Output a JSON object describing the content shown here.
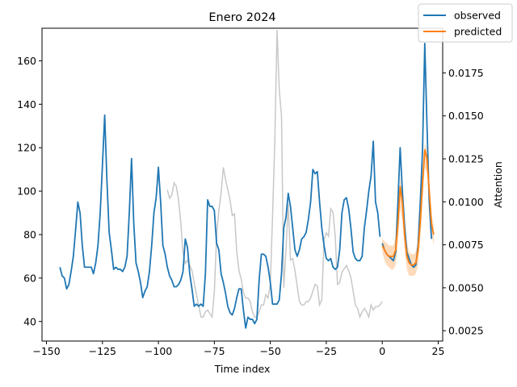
{
  "chart_data": {
    "type": "line",
    "title": "Enero 2024",
    "xlabel": "Time index",
    "ylabel": "",
    "ylabel_right": "Attention",
    "xlim": [
      -152,
      27
    ],
    "ylim": [
      31,
      175
    ],
    "ylim_right": [
      0.0019,
      0.0201
    ],
    "x_ticks": [
      -150,
      -125,
      -100,
      -75,
      -50,
      -25,
      0,
      25
    ],
    "x_tick_labels": [
      "−150",
      "−125",
      "−100",
      "−75",
      "−50",
      "−25",
      "0",
      "25"
    ],
    "y_ticks": [
      40,
      60,
      80,
      100,
      120,
      140,
      160
    ],
    "y_tick_labels": [
      "40",
      "60",
      "80",
      "100",
      "120",
      "140",
      "160"
    ],
    "y_ticks_right": [
      0.0025,
      0.005,
      0.0075,
      0.01,
      0.0125,
      0.015,
      0.0175
    ],
    "y_tick_labels_right": [
      "0.0025",
      "0.0050",
      "0.0075",
      "0.0100",
      "0.0125",
      "0.0150",
      "0.0175"
    ],
    "grid": false,
    "legend_position": "top-right",
    "series": [
      {
        "name": "observed",
        "color": "#1f77b4",
        "x": [
          -144,
          -143,
          -142,
          -141,
          -140,
          -139,
          -138,
          -137,
          -136,
          -135,
          -134,
          -133,
          -132,
          -131,
          -130,
          -129,
          -128,
          -127,
          -126,
          -125,
          -124,
          -123,
          -122,
          -121,
          -120,
          -119,
          -118,
          -117,
          -116,
          -115,
          -114,
          -113,
          -112,
          -111,
          -110,
          -109,
          -108,
          -107,
          -106,
          -105,
          -104,
          -103,
          -102,
          -101,
          -100,
          -99,
          -98,
          -97,
          -96,
          -95,
          -94,
          -93,
          -92,
          -91,
          -90,
          -89,
          -88,
          -87,
          -86,
          -85,
          -84,
          -83,
          -82,
          -81,
          -80,
          -79,
          -78,
          -77,
          -76,
          -75,
          -74,
          -73,
          -72,
          -71,
          -70,
          -69,
          -68,
          -67,
          -66,
          -65,
          -64,
          -63,
          -62,
          -61,
          -60,
          -59,
          -58,
          -57,
          -56,
          -55,
          -54,
          -53,
          -52,
          -51,
          -50,
          -49,
          -48,
          -47,
          -46,
          -45,
          -44,
          -43,
          -42,
          -41,
          -40,
          -39,
          -38,
          -37,
          -36,
          -35,
          -34,
          -33,
          -32,
          -31,
          -30,
          -29,
          -28,
          -27,
          -26,
          -25,
          -24,
          -23,
          -22,
          -21,
          -20,
          -19,
          -18,
          -17,
          -16,
          -15,
          -14,
          -13,
          -12,
          -11,
          -10,
          -9,
          -8,
          -7,
          -6,
          -5,
          -4,
          -3,
          -2,
          -1,
          0,
          1,
          2,
          3,
          4,
          5,
          6,
          7,
          8,
          9,
          10,
          11,
          12,
          13,
          14,
          15,
          16,
          17,
          18,
          19,
          20,
          21,
          22,
          23
        ],
        "values": [
          65,
          61,
          60,
          55,
          57,
          63,
          70,
          82,
          95,
          90,
          75,
          65,
          65,
          65,
          65,
          62,
          67,
          75,
          90,
          112,
          135,
          105,
          81,
          73,
          64,
          65,
          64,
          64,
          63,
          65,
          70,
          90,
          115,
          85,
          67,
          63,
          58,
          51,
          54,
          56,
          63,
          75,
          90,
          97,
          111,
          95,
          75,
          71,
          65,
          61,
          59,
          56,
          56,
          57,
          59,
          63,
          78,
          74,
          62,
          55,
          47,
          48,
          47,
          48,
          47,
          62,
          96,
          93,
          93,
          91,
          76,
          73,
          62,
          58,
          53,
          47,
          44,
          43,
          46,
          51,
          55,
          55,
          45,
          37,
          42,
          41,
          41,
          39,
          41,
          59,
          71,
          71,
          70,
          65,
          58,
          48,
          48,
          48,
          50,
          62,
          83,
          88,
          99,
          93,
          83,
          73,
          70,
          73,
          78,
          79,
          81,
          87,
          95,
          110,
          108,
          109,
          95,
          83,
          75,
          69,
          68,
          69,
          65,
          64,
          65,
          73,
          90,
          96,
          97,
          92,
          83,
          72,
          69,
          68,
          68,
          70,
          83,
          91,
          100,
          107,
          123,
          95,
          90,
          79,
          null,
          null,
          null,
          null,
          null,
          null,
          null,
          null,
          null,
          null,
          null,
          null,
          null,
          null,
          null,
          null,
          null,
          null,
          null,
          null,
          null,
          null,
          null,
          null
        ],
        "values_future": [
          null,
          null,
          null,
          null,
          null,
          null,
          null,
          null,
          null,
          null,
          null,
          null,
          null,
          null,
          null,
          null,
          null,
          null,
          null,
          null,
          null,
          null,
          null,
          null,
          null,
          null,
          null,
          null,
          null,
          null,
          null,
          null,
          null,
          null,
          null,
          null,
          null,
          null,
          null,
          null,
          null,
          null,
          null,
          null,
          null,
          null,
          null,
          null,
          null,
          null,
          null,
          null,
          null,
          null,
          null,
          null,
          null,
          null,
          null,
          null,
          null,
          null,
          null,
          null,
          null,
          null,
          null,
          null,
          null,
          null,
          null,
          null,
          null,
          null,
          null,
          null,
          null,
          null,
          null,
          null,
          null,
          null,
          null,
          null,
          null,
          null,
          null,
          null,
          null,
          null,
          null,
          null,
          null,
          null,
          null,
          null,
          null,
          null,
          null,
          null,
          null,
          null,
          null,
          null,
          null,
          null,
          null,
          null,
          null,
          null,
          null,
          null,
          null,
          null,
          null,
          null,
          null,
          null,
          null,
          null,
          null,
          null,
          null,
          null,
          null,
          null,
          null,
          null,
          null,
          null,
          null,
          null,
          null,
          null,
          null,
          null,
          null,
          null,
          null,
          null,
          null,
          null,
          null,
          null,
          76,
          73,
          71,
          70,
          69,
          68,
          72,
          95,
          120,
          100,
          84,
          72,
          69,
          66,
          65,
          66,
          75,
          95,
          119,
          168,
          130,
          95,
          78,
          null
        ]
      },
      {
        "name": "predicted",
        "color": "#ff7f0e",
        "x": [
          0,
          1,
          2,
          3,
          4,
          5,
          6,
          7,
          8,
          9,
          10,
          11,
          12,
          13,
          14,
          15,
          16,
          17,
          18,
          19,
          20,
          21,
          22,
          23
        ],
        "values": [
          75,
          73,
          71,
          70,
          70,
          70,
          73,
          85,
          102,
          95,
          80,
          70,
          67,
          66,
          66,
          67,
          73,
          86,
          104,
          119,
          115,
          100,
          85,
          80
        ],
        "band_low": [
          72,
          68,
          66,
          65,
          64,
          64,
          66,
          76,
          92,
          86,
          73,
          64,
          61,
          61,
          61,
          62,
          66,
          77,
          94,
          111,
          108,
          93,
          80,
          75
        ],
        "band_high": [
          78,
          77,
          76,
          75,
          75,
          75,
          79,
          91,
          106,
          100,
          85,
          76,
          72,
          71,
          71,
          72,
          78,
          92,
          108,
          122,
          119,
          105,
          89,
          84
        ]
      },
      {
        "name": "attention",
        "color": "#c8c8c8",
        "axis": "right",
        "x": [
          -96,
          -95,
          -94,
          -93,
          -92,
          -91,
          -90,
          -89,
          -88,
          -87,
          -86,
          -85,
          -84,
          -83,
          -82,
          -81,
          -80,
          -79,
          -78,
          -77,
          -76,
          -75,
          -74,
          -73,
          -72,
          -71,
          -70,
          -69,
          -68,
          -67,
          -66,
          -65,
          -64,
          -63,
          -62,
          -61,
          -60,
          -59,
          -58,
          -57,
          -56,
          -55,
          -54,
          -53,
          -52,
          -51,
          -50,
          -49,
          -48,
          -47,
          -46,
          -45,
          -44,
          -43,
          -42,
          -41,
          -40,
          -39,
          -38,
          -37,
          -36,
          -35,
          -34,
          -33,
          -32,
          -31,
          -30,
          -29,
          -28,
          -27,
          -26,
          -25,
          -24,
          -23,
          -22,
          -21,
          -20,
          -19,
          -18,
          -17,
          -16,
          -15,
          -14,
          -13,
          -12,
          -11,
          -10,
          -9,
          -8,
          -7,
          -6,
          -5,
          -4,
          -3,
          -2,
          -1,
          0
        ],
        "values": [
          0.0107,
          0.0102,
          0.0104,
          0.0111,
          0.0109,
          0.0101,
          0.0088,
          0.007,
          0.0064,
          0.0066,
          0.0063,
          0.006,
          0.0053,
          0.0046,
          0.004,
          0.0033,
          0.0033,
          0.0036,
          0.0037,
          0.0035,
          0.0033,
          0.0048,
          0.008,
          0.0095,
          0.0105,
          0.012,
          0.0113,
          0.0107,
          0.0101,
          0.0092,
          0.0093,
          0.0071,
          0.006,
          0.0055,
          0.0047,
          0.0044,
          0.0044,
          0.0042,
          0.0036,
          0.0033,
          0.0033,
          0.0036,
          0.004,
          0.004,
          0.0046,
          0.0044,
          0.0052,
          0.0092,
          0.0135,
          0.02,
          0.0165,
          0.015,
          0.005,
          0.0072,
          0.0099,
          0.0066,
          0.0067,
          0.006,
          0.0051,
          0.0042,
          0.004,
          0.004,
          0.0042,
          0.0042,
          0.0044,
          0.0048,
          0.0052,
          0.0051,
          0.004,
          0.0043,
          0.0078,
          0.0082,
          0.008,
          0.0096,
          0.0094,
          0.008,
          0.0052,
          0.0053,
          0.0059,
          0.0061,
          0.0063,
          0.006,
          0.0056,
          0.0048,
          0.004,
          0.0038,
          0.0033,
          0.0036,
          0.0038,
          0.0036,
          0.0033,
          0.004,
          0.0037,
          0.0039,
          0.0039,
          0.004,
          0.0042
        ]
      }
    ]
  }
}
